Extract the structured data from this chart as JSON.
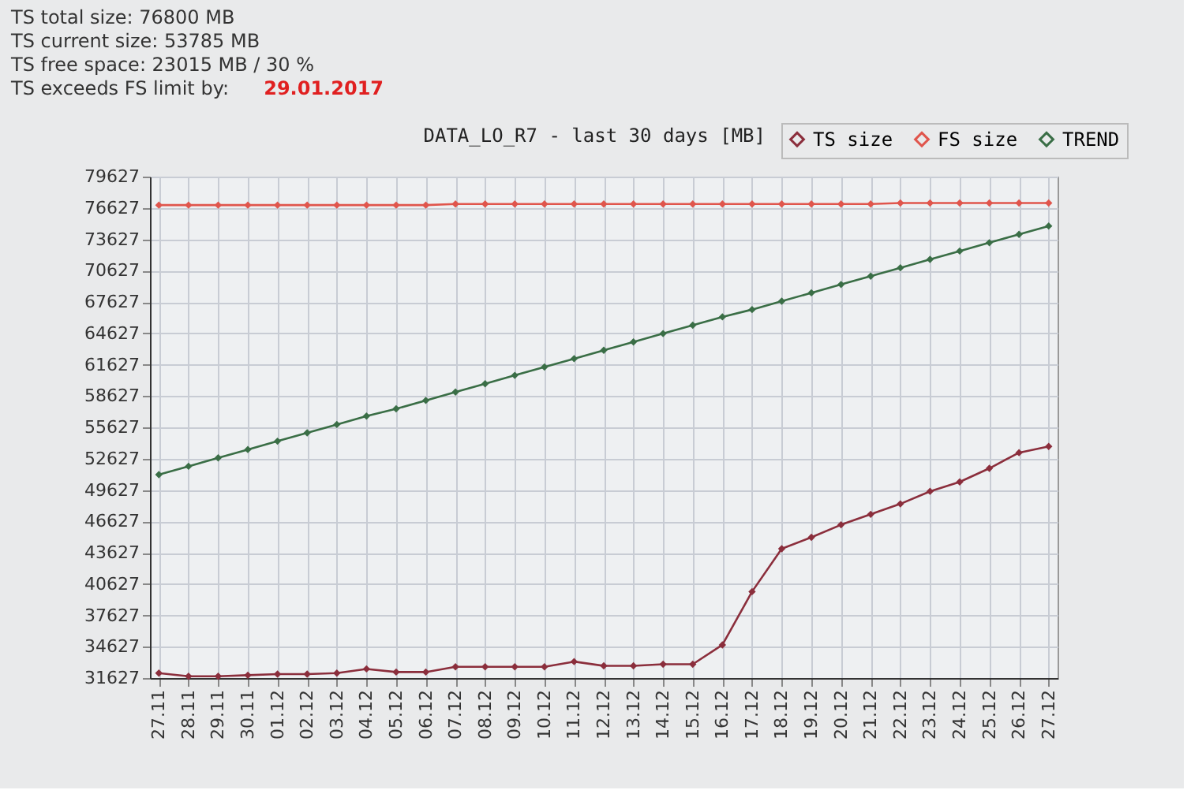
{
  "chart_data": {
    "type": "line",
    "title": "DATA_LO_R7 - last 30 days [MB]",
    "annotations": [
      "TS total size: 76800 MB",
      "TS current size: 53785 MB",
      "TS free space: 23015 MB / 30 %",
      "TS exceeds FS limit by:",
      "29.01.2017"
    ],
    "categories": [
      "27.11",
      "28.11",
      "29.11",
      "30.11",
      "01.12",
      "02.12",
      "03.12",
      "04.12",
      "05.12",
      "06.12",
      "07.12",
      "08.12",
      "09.12",
      "10.12",
      "11.12",
      "12.12",
      "13.12",
      "14.12",
      "15.12",
      "16.12",
      "17.12",
      "18.12",
      "19.12",
      "20.12",
      "21.12",
      "22.12",
      "23.12",
      "24.12",
      "25.12",
      "26.12",
      "27.12"
    ],
    "series": [
      {
        "name": "TS size",
        "color": "#8b2e3c",
        "values": [
          32100,
          31800,
          31800,
          31900,
          32000,
          32000,
          32100,
          32500,
          32200,
          32200,
          32700,
          32700,
          32700,
          32700,
          33200,
          32800,
          32800,
          32950,
          32950,
          34800,
          39900,
          44000,
          45100,
          46300,
          47300,
          48300,
          49500,
          50400,
          51700,
          53200,
          53800
        ]
      },
      {
        "name": "FS size",
        "color": "#e0554c",
        "values": [
          76900,
          76900,
          76900,
          76900,
          76900,
          76900,
          76900,
          76900,
          76900,
          76900,
          77000,
          77000,
          77000,
          77000,
          77000,
          77000,
          77000,
          77000,
          77000,
          77000,
          77000,
          77000,
          77000,
          77000,
          77000,
          77100,
          77100,
          77100,
          77100,
          77100,
          77100
        ]
      },
      {
        "name": "TREND",
        "color": "#3a6e46",
        "values": [
          51100,
          51900,
          52700,
          53500,
          54300,
          55100,
          55900,
          56700,
          57400,
          58200,
          59000,
          59800,
          60600,
          61400,
          62200,
          63000,
          63800,
          64600,
          65400,
          66200,
          66900,
          67700,
          68500,
          69300,
          70100,
          70900,
          71700,
          72500,
          73300,
          74100,
          74900
        ]
      }
    ],
    "ylim": [
      31627,
      79627
    ],
    "yticks": [
      31627,
      34627,
      37627,
      40627,
      43627,
      46627,
      49627,
      52627,
      55627,
      58627,
      61627,
      64627,
      67627,
      70627,
      73627,
      76627,
      79627
    ],
    "grid": true,
    "legend": "top right",
    "marker": "diamond",
    "line_style": "solid"
  }
}
